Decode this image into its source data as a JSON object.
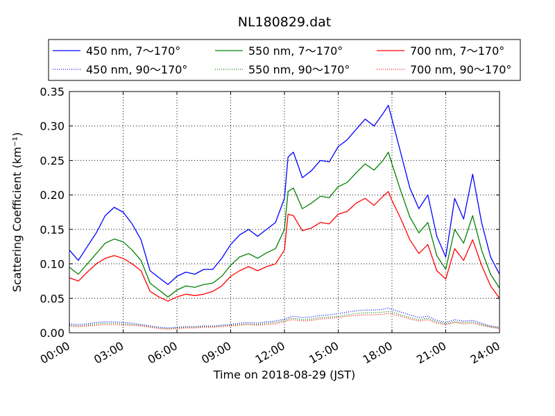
{
  "chart_data": {
    "type": "line",
    "title": "NL180829.dat",
    "xlabel": "Time on 2018-08-29 (JST)",
    "ylabel": "Scattering Coefficient (km⁻¹)",
    "x_unit": "hours (JST)",
    "xlim": [
      0,
      24
    ],
    "ylim": [
      0,
      0.35
    ],
    "x_tick_values": [
      0,
      3,
      6,
      9,
      12,
      15,
      18,
      21,
      24
    ],
    "x_tick_labels": [
      "00:00",
      "03:00",
      "06:00",
      "09:00",
      "12:00",
      "15:00",
      "18:00",
      "21:00",
      "24:00"
    ],
    "y_tick_values": [
      0,
      0.05,
      0.1,
      0.15,
      0.2,
      0.25,
      0.3,
      0.35
    ],
    "y_tick_labels": [
      "0.00",
      "0.05",
      "0.10",
      "0.15",
      "0.20",
      "0.25",
      "0.30",
      "0.35"
    ],
    "grid": true,
    "legend_position": "top, above plot (3 columns)",
    "x": [
      0,
      0.5,
      1,
      1.5,
      2,
      2.5,
      3,
      3.5,
      4,
      4.5,
      5,
      5.5,
      6,
      6.5,
      7,
      7.5,
      8,
      8.5,
      9,
      9.5,
      10,
      10.5,
      11,
      11.5,
      12,
      12.2,
      12.5,
      13,
      13.5,
      14,
      14.5,
      15,
      15.5,
      16,
      16.5,
      17,
      17.5,
      17.8,
      18,
      18.5,
      19,
      19.5,
      20,
      20.5,
      21,
      21.5,
      22,
      22.5,
      23,
      23.5,
      24
    ],
    "series": [
      {
        "name": "450 nm, 7～170°",
        "color": "#0000ff",
        "style": "solid",
        "values": [
          0.12,
          0.105,
          0.125,
          0.145,
          0.17,
          0.182,
          0.175,
          0.158,
          0.135,
          0.09,
          0.08,
          0.07,
          0.082,
          0.088,
          0.085,
          0.092,
          0.092,
          0.108,
          0.128,
          0.142,
          0.15,
          0.14,
          0.15,
          0.16,
          0.195,
          0.255,
          0.262,
          0.225,
          0.235,
          0.25,
          0.248,
          0.27,
          0.28,
          0.295,
          0.31,
          0.3,
          0.318,
          0.33,
          0.31,
          0.26,
          0.21,
          0.18,
          0.2,
          0.14,
          0.11,
          0.195,
          0.165,
          0.23,
          0.16,
          0.11,
          0.085
        ]
      },
      {
        "name": "450 nm, 90～170°",
        "color": "#0000ff",
        "style": "dotted",
        "values": [
          0.013,
          0.012,
          0.013,
          0.015,
          0.016,
          0.016,
          0.015,
          0.014,
          0.012,
          0.01,
          0.008,
          0.007,
          0.008,
          0.009,
          0.009,
          0.01,
          0.01,
          0.011,
          0.012,
          0.014,
          0.015,
          0.014,
          0.016,
          0.017,
          0.02,
          0.022,
          0.024,
          0.022,
          0.023,
          0.025,
          0.026,
          0.028,
          0.03,
          0.032,
          0.033,
          0.033,
          0.034,
          0.036,
          0.034,
          0.03,
          0.026,
          0.022,
          0.024,
          0.018,
          0.015,
          0.019,
          0.017,
          0.018,
          0.014,
          0.01,
          0.008
        ]
      },
      {
        "name": "550 nm, 7～170°",
        "color": "#008000",
        "style": "solid",
        "values": [
          0.095,
          0.085,
          0.1,
          0.115,
          0.13,
          0.136,
          0.132,
          0.12,
          0.105,
          0.072,
          0.062,
          0.052,
          0.062,
          0.068,
          0.066,
          0.07,
          0.072,
          0.082,
          0.098,
          0.11,
          0.115,
          0.108,
          0.116,
          0.122,
          0.15,
          0.205,
          0.21,
          0.18,
          0.188,
          0.198,
          0.196,
          0.212,
          0.218,
          0.232,
          0.245,
          0.236,
          0.25,
          0.262,
          0.245,
          0.205,
          0.168,
          0.145,
          0.16,
          0.112,
          0.092,
          0.15,
          0.13,
          0.17,
          0.12,
          0.085,
          0.065
        ]
      },
      {
        "name": "550 nm, 90～170°",
        "color": "#008000",
        "style": "dotted",
        "values": [
          0.011,
          0.01,
          0.011,
          0.013,
          0.014,
          0.014,
          0.013,
          0.012,
          0.011,
          0.009,
          0.007,
          0.006,
          0.007,
          0.008,
          0.008,
          0.009,
          0.009,
          0.01,
          0.011,
          0.012,
          0.013,
          0.012,
          0.014,
          0.015,
          0.018,
          0.02,
          0.021,
          0.019,
          0.02,
          0.022,
          0.023,
          0.024,
          0.026,
          0.028,
          0.029,
          0.029,
          0.03,
          0.031,
          0.03,
          0.026,
          0.022,
          0.019,
          0.021,
          0.016,
          0.013,
          0.016,
          0.015,
          0.016,
          0.012,
          0.009,
          0.007
        ]
      },
      {
        "name": "700 nm, 7～170°",
        "color": "#ff0000",
        "style": "solid",
        "values": [
          0.08,
          0.075,
          0.088,
          0.1,
          0.108,
          0.112,
          0.108,
          0.1,
          0.09,
          0.06,
          0.052,
          0.046,
          0.052,
          0.056,
          0.054,
          0.056,
          0.06,
          0.068,
          0.082,
          0.09,
          0.096,
          0.09,
          0.096,
          0.1,
          0.12,
          0.172,
          0.17,
          0.148,
          0.152,
          0.16,
          0.158,
          0.172,
          0.176,
          0.188,
          0.195,
          0.185,
          0.198,
          0.205,
          0.192,
          0.165,
          0.135,
          0.115,
          0.128,
          0.09,
          0.078,
          0.122,
          0.105,
          0.135,
          0.098,
          0.068,
          0.05
        ]
      },
      {
        "name": "700 nm, 90～170°",
        "color": "#ff0000",
        "style": "dotted",
        "values": [
          0.01,
          0.009,
          0.01,
          0.011,
          0.012,
          0.012,
          0.011,
          0.011,
          0.01,
          0.008,
          0.006,
          0.005,
          0.006,
          0.007,
          0.007,
          0.008,
          0.008,
          0.009,
          0.01,
          0.011,
          0.012,
          0.011,
          0.012,
          0.013,
          0.016,
          0.018,
          0.019,
          0.017,
          0.018,
          0.02,
          0.021,
          0.022,
          0.024,
          0.025,
          0.026,
          0.026,
          0.027,
          0.028,
          0.027,
          0.024,
          0.02,
          0.017,
          0.019,
          0.014,
          0.012,
          0.015,
          0.013,
          0.014,
          0.011,
          0.008,
          0.006
        ]
      }
    ]
  }
}
